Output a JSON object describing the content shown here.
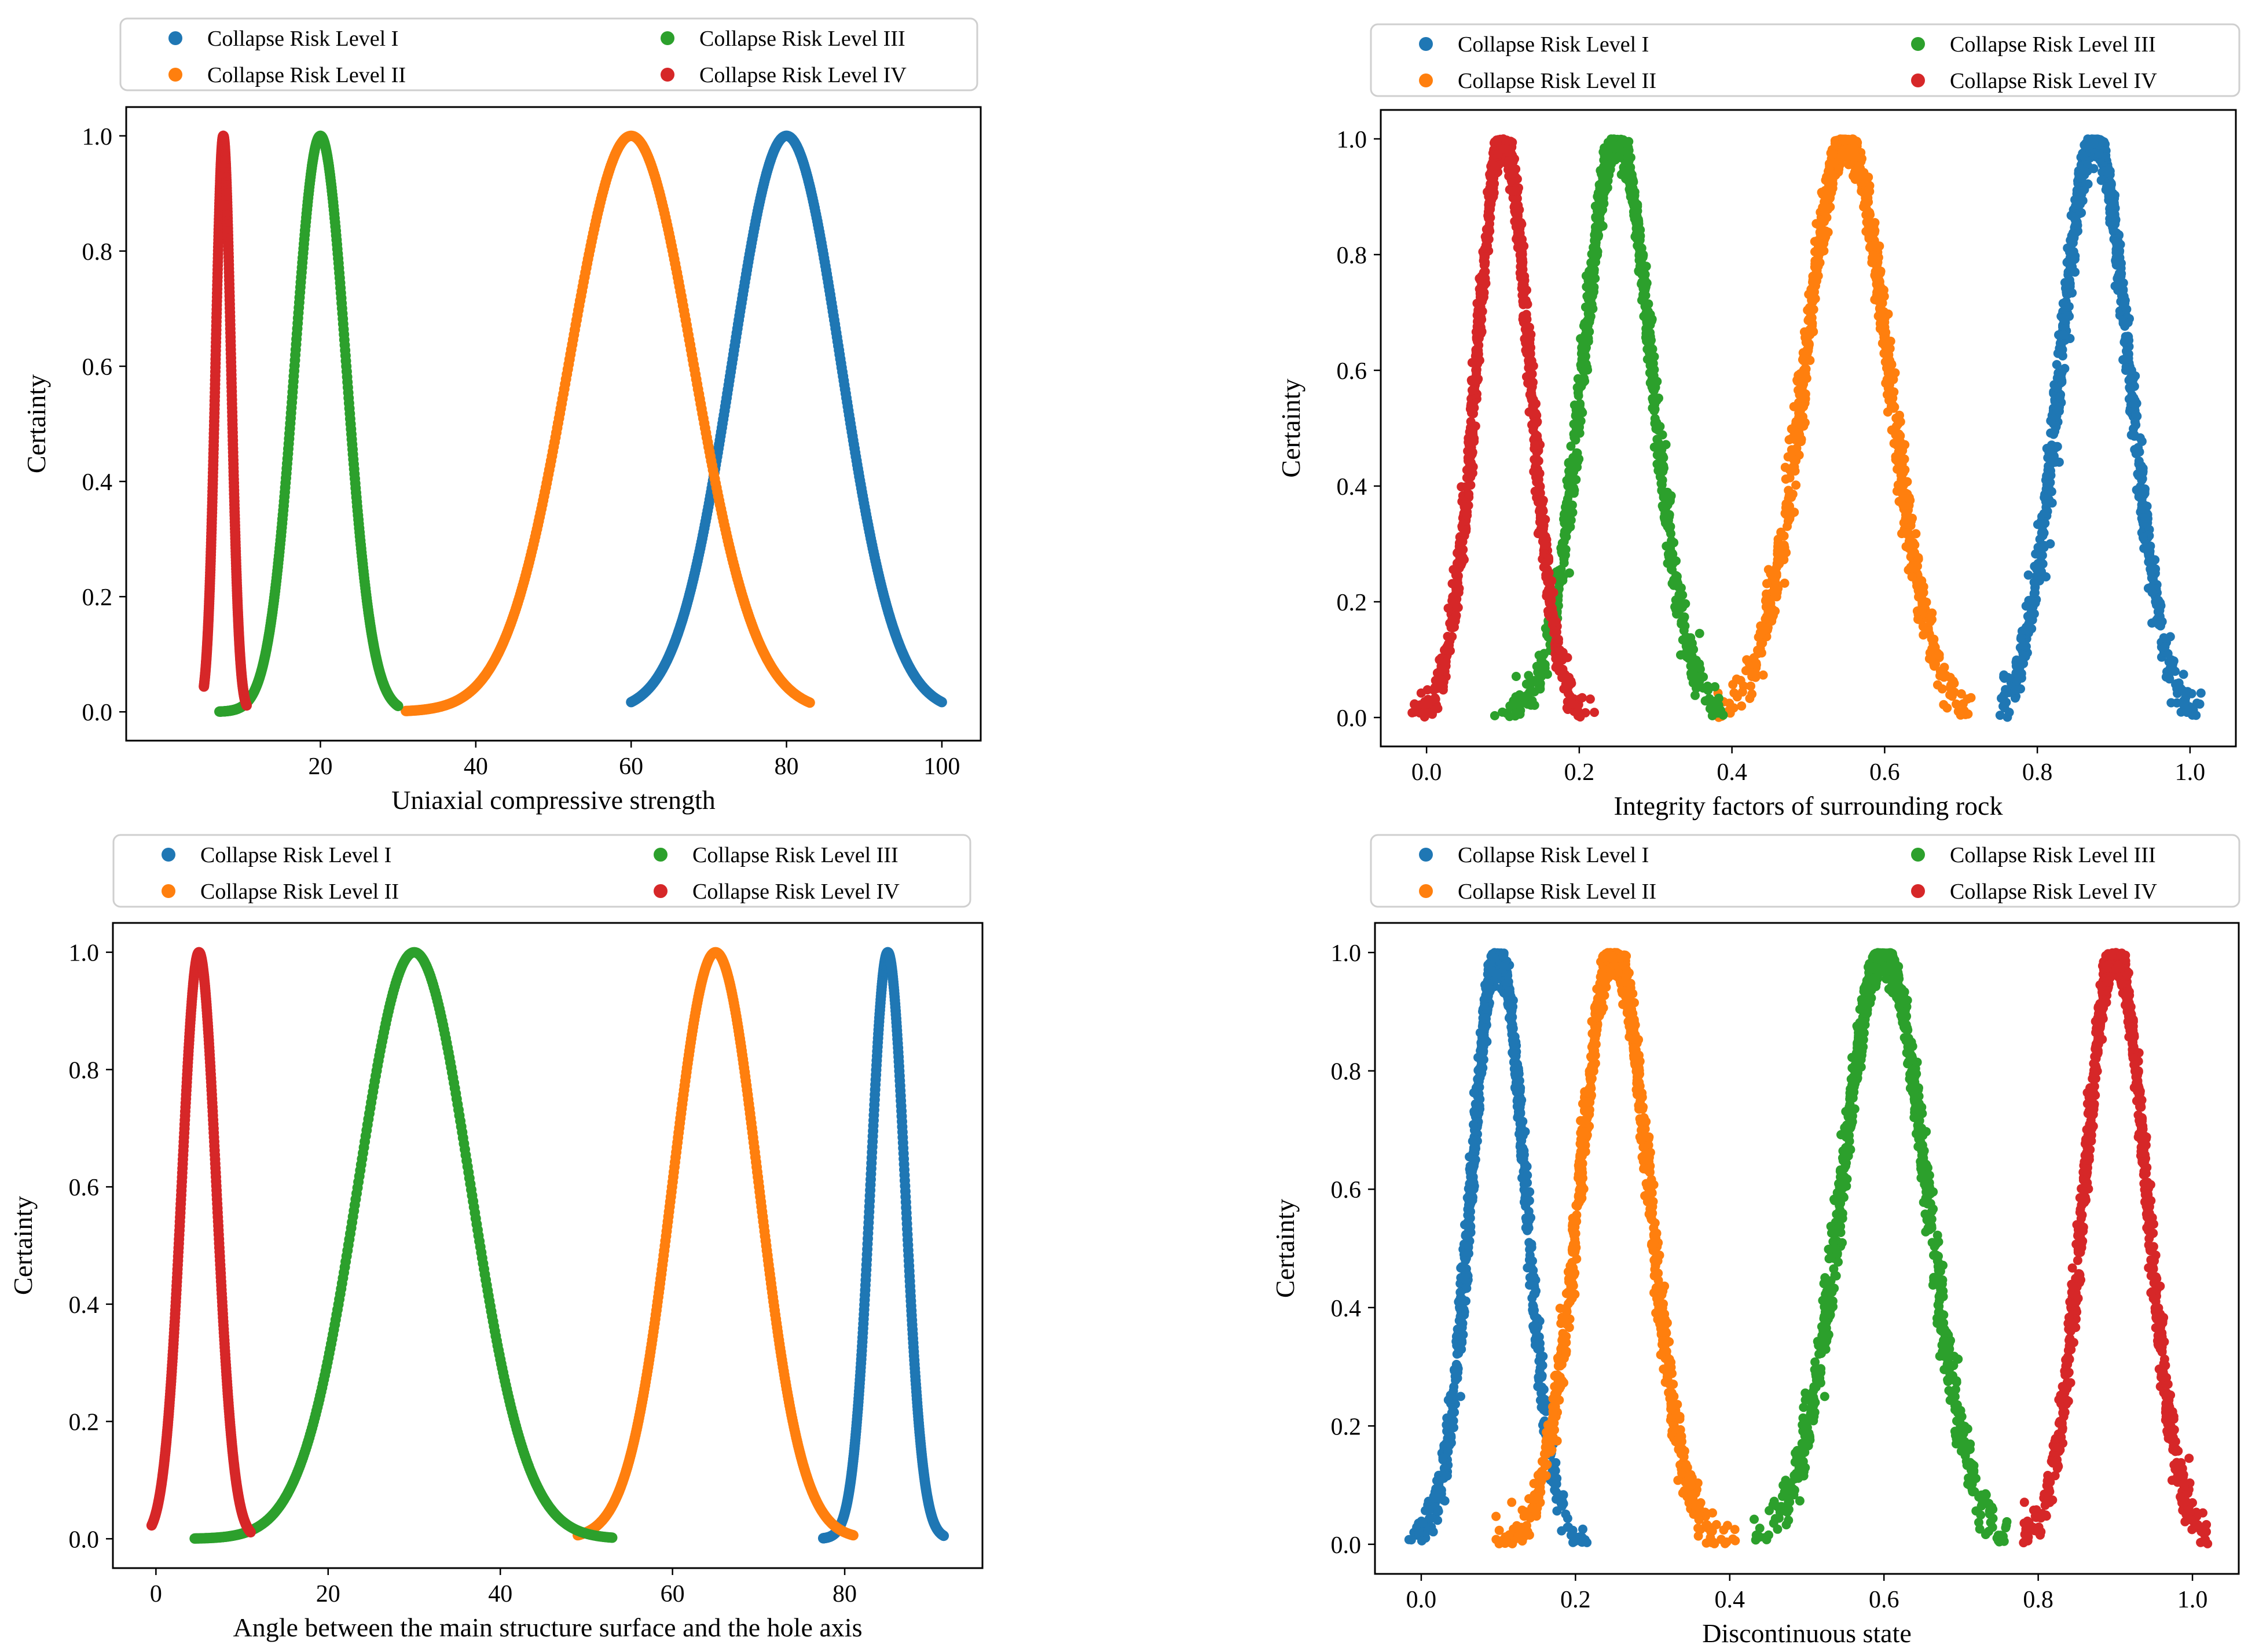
{
  "chart_data": [
    {
      "type": "scatter",
      "panel": "top-left",
      "xlabel": "Uniaxial compressive strength",
      "ylabel": "Certainty",
      "xlim": [
        -5,
        105
      ],
      "ylim": [
        -0.05,
        1.05
      ],
      "xticks": [
        20,
        40,
        60,
        80,
        100
      ],
      "yticks": [
        0.0,
        0.2,
        0.4,
        0.6,
        0.8,
        1.0
      ],
      "legend_position": "top",
      "noise": "smooth",
      "series": [
        {
          "name": "Collapse Risk Level  I",
          "color": "#1f77b4",
          "center": 80,
          "sigma": 7.0,
          "x_range": [
            60,
            100
          ]
        },
        {
          "name": "Collapse Risk Level  II",
          "color": "#ff7f0e",
          "center": 60,
          "sigma": 8.0,
          "x_range": [
            31,
            83
          ]
        },
        {
          "name": "Collapse Risk Level  III",
          "color": "#2ca02c",
          "center": 20,
          "sigma": 3.3,
          "x_range": [
            7,
            30
          ]
        },
        {
          "name": "Collapse Risk Level  IV",
          "color": "#d62728",
          "center": 7.5,
          "sigma": 1.0,
          "x_range": [
            5,
            10.5
          ]
        }
      ]
    },
    {
      "type": "scatter",
      "panel": "top-right",
      "xlabel": "Integrity factors of surrounding rock",
      "ylabel": "Certainty",
      "xlim": [
        -0.06,
        1.06
      ],
      "ylim": [
        -0.05,
        1.05
      ],
      "xticks": [
        0.0,
        0.2,
        0.4,
        0.6,
        0.8,
        1.0
      ],
      "yticks": [
        0.0,
        0.2,
        0.4,
        0.6,
        0.8,
        1.0
      ],
      "legend_position": "top",
      "noise": "scattered",
      "series": [
        {
          "name": "Collapse Risk Level  I",
          "color": "#1f77b4",
          "center": 0.875,
          "sigma": 0.045,
          "x_range": [
            0.75,
            1.02
          ]
        },
        {
          "name": "Collapse Risk Level  II",
          "color": "#ff7f0e",
          "center": 0.55,
          "sigma": 0.055,
          "x_range": [
            0.38,
            0.72
          ]
        },
        {
          "name": "Collapse Risk Level  III",
          "color": "#2ca02c",
          "center": 0.25,
          "sigma": 0.045,
          "x_range": [
            0.08,
            0.39
          ]
        },
        {
          "name": "Collapse Risk Level  IV",
          "color": "#d62728",
          "center": 0.1,
          "sigma": 0.035,
          "x_range": [
            -0.02,
            0.22
          ]
        }
      ]
    },
    {
      "type": "scatter",
      "panel": "bottom-left",
      "xlabel": "Angle between the main structure surface and the hole axis",
      "ylabel": "Certainty",
      "xlim": [
        -5,
        96
      ],
      "ylim": [
        -0.05,
        1.05
      ],
      "xticks": [
        0,
        20,
        40,
        60,
        80
      ],
      "yticks": [
        0.0,
        0.2,
        0.4,
        0.6,
        0.8,
        1.0
      ],
      "legend_position": "top",
      "noise": "smooth",
      "series": [
        {
          "name": "Collapse Risk Level  I",
          "color": "#1f77b4",
          "center": 85,
          "sigma": 2.0,
          "x_range": [
            77.5,
            91.5
          ]
        },
        {
          "name": "Collapse Risk Level  II",
          "color": "#ff7f0e",
          "center": 65,
          "sigma": 5.0,
          "x_range": [
            49,
            81
          ]
        },
        {
          "name": "Collapse Risk Level  III",
          "color": "#2ca02c",
          "center": 30,
          "sigma": 6.5,
          "x_range": [
            4.5,
            53
          ]
        },
        {
          "name": "Collapse Risk Level  IV",
          "color": "#d62728",
          "center": 5,
          "sigma": 2.0,
          "x_range": [
            -0.5,
            11
          ]
        }
      ]
    },
    {
      "type": "scatter",
      "panel": "bottom-right",
      "xlabel": "Discontinuous state",
      "ylabel": "Certainty",
      "xlim": [
        -0.06,
        1.06
      ],
      "ylim": [
        -0.05,
        1.05
      ],
      "xticks": [
        0.0,
        0.2,
        0.4,
        0.6,
        0.8,
        1.0
      ],
      "yticks": [
        0.0,
        0.2,
        0.4,
        0.6,
        0.8,
        1.0
      ],
      "legend_position": "top",
      "noise": "scattered",
      "series": [
        {
          "name": "Collapse Risk Level  I",
          "color": "#1f77b4",
          "center": 0.1,
          "sigma": 0.035,
          "x_range": [
            -0.02,
            0.22
          ]
        },
        {
          "name": "Collapse Risk Level  II",
          "color": "#ff7f0e",
          "center": 0.25,
          "sigma": 0.045,
          "x_range": [
            0.09,
            0.42
          ]
        },
        {
          "name": "Collapse Risk Level  III",
          "color": "#2ca02c",
          "center": 0.6,
          "sigma": 0.055,
          "x_range": [
            0.43,
            0.76
          ]
        },
        {
          "name": "Collapse Risk Level  IV",
          "color": "#d62728",
          "center": 0.9,
          "sigma": 0.04,
          "x_range": [
            0.78,
            1.02
          ]
        }
      ]
    }
  ]
}
